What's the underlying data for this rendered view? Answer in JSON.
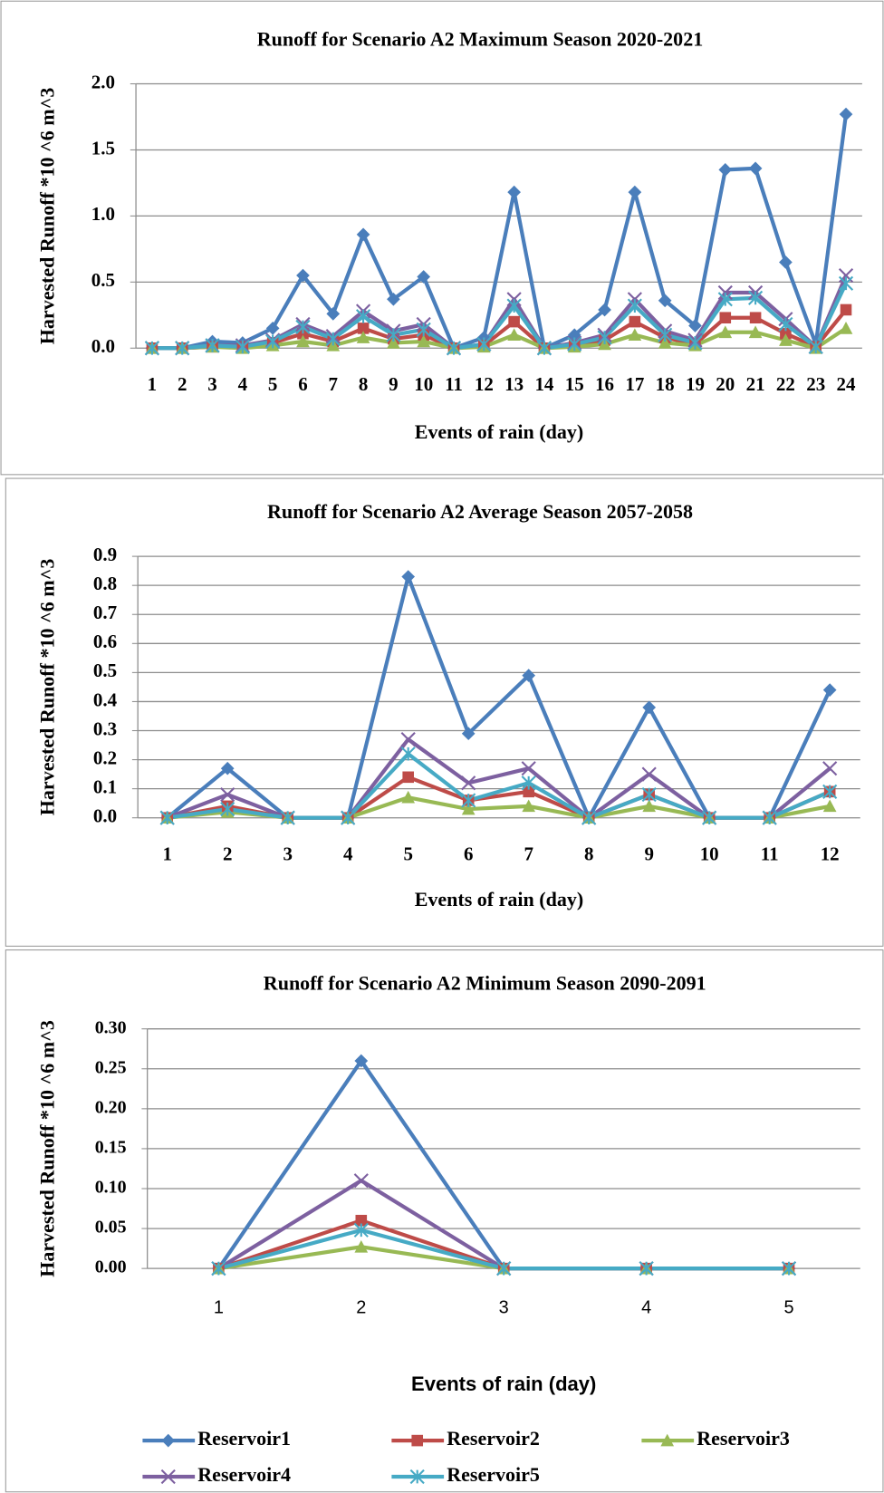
{
  "chart_data": [
    {
      "type": "line",
      "title": "Runoff for Scenario A2 Maximum Season 2020-2021",
      "x_label": "Events of rain (day)",
      "y_label": "Harvested Runoff *10 ^6 m^3",
      "categories": [
        1,
        2,
        3,
        4,
        5,
        6,
        7,
        8,
        9,
        10,
        11,
        12,
        13,
        14,
        15,
        16,
        17,
        18,
        19,
        20,
        21,
        22,
        23,
        24
      ],
      "ylim": [
        0,
        2
      ],
      "yticks": [
        {
          "value": 0,
          "label": "0.0"
        },
        0.5,
        {
          "value": 1,
          "label": "1.0"
        },
        1.5,
        {
          "value": 2,
          "label": "2.0"
        }
      ],
      "grid": true,
      "series": [
        {
          "name": "Reservoir1",
          "color": "#4a7ebb",
          "marker": "diamond",
          "values": [
            0,
            0,
            0.05,
            0.04,
            0.15,
            0.55,
            0.26,
            0.86,
            0.37,
            0.54,
            0,
            0.08,
            1.18,
            0,
            0.1,
            0.29,
            1.18,
            0.36,
            0.17,
            1.35,
            1.36,
            0.65,
            0.03,
            1.77
          ]
        },
        {
          "name": "Reservoir2",
          "color": "#be4b48",
          "marker": "square",
          "values": [
            0,
            0,
            0.01,
            0.01,
            0.04,
            0.11,
            0.05,
            0.15,
            0.07,
            0.1,
            0,
            0.02,
            0.2,
            0,
            0.02,
            0.06,
            0.2,
            0.08,
            0.03,
            0.23,
            0.23,
            0.11,
            0.01,
            0.29
          ]
        },
        {
          "name": "Reservoir3",
          "color": "#98b954",
          "marker": "triangle",
          "values": [
            0,
            0,
            0.01,
            0,
            0.02,
            0.05,
            0.02,
            0.08,
            0.04,
            0.05,
            0,
            0.01,
            0.1,
            0,
            0.01,
            0.03,
            0.1,
            0.04,
            0.02,
            0.12,
            0.12,
            0.06,
            0,
            0.15
          ]
        },
        {
          "name": "Reservoir4",
          "color": "#7d60a0",
          "marker": "x",
          "values": [
            0,
            0,
            0.02,
            0.02,
            0.06,
            0.18,
            0.09,
            0.28,
            0.13,
            0.18,
            0,
            0.03,
            0.37,
            0,
            0.04,
            0.1,
            0.37,
            0.13,
            0.06,
            0.42,
            0.42,
            0.22,
            0.01,
            0.55
          ]
        },
        {
          "name": "Reservoir5",
          "color": "#46aac5",
          "marker": "star",
          "values": [
            0,
            0,
            0.02,
            0.01,
            0.05,
            0.16,
            0.07,
            0.24,
            0.1,
            0.14,
            0,
            0.03,
            0.32,
            0,
            0.03,
            0.08,
            0.32,
            0.1,
            0.04,
            0.37,
            0.38,
            0.18,
            0.01,
            0.49
          ]
        }
      ]
    },
    {
      "type": "line",
      "title": "Runoff for Scenario A2 Average Season 2057-2058",
      "x_label": "Events of rain (day)",
      "y_label": "Harvested Runoff *10 ^6 m^3",
      "categories": [
        1,
        2,
        3,
        4,
        5,
        6,
        7,
        8,
        9,
        10,
        11,
        12
      ],
      "ylim": [
        0,
        0.9
      ],
      "yticks": [
        {
          "value": 0,
          "label": "0.0"
        },
        0.1,
        0.2,
        0.3,
        0.4,
        0.5,
        0.6,
        0.7,
        0.8,
        0.9
      ],
      "grid": true,
      "series": [
        {
          "name": "Reservoir1",
          "color": "#4a7ebb",
          "marker": "diamond",
          "values": [
            0,
            0.17,
            0,
            0,
            0.83,
            0.29,
            0.49,
            0,
            0.38,
            0,
            0,
            0.44
          ]
        },
        {
          "name": "Reservoir2",
          "color": "#be4b48",
          "marker": "square",
          "values": [
            0,
            0.04,
            0,
            0,
            0.14,
            0.06,
            0.09,
            0,
            0.08,
            0,
            0,
            0.09
          ]
        },
        {
          "name": "Reservoir3",
          "color": "#98b954",
          "marker": "triangle",
          "values": [
            0,
            0.02,
            0,
            0,
            0.07,
            0.03,
            0.04,
            0,
            0.04,
            0,
            0,
            0.04
          ]
        },
        {
          "name": "Reservoir4",
          "color": "#7d60a0",
          "marker": "x",
          "values": [
            0,
            0.08,
            0,
            0,
            0.27,
            0.12,
            0.17,
            0,
            0.15,
            0,
            0,
            0.17
          ]
        },
        {
          "name": "Reservoir5",
          "color": "#46aac5",
          "marker": "star",
          "values": [
            0,
            0.03,
            0,
            0,
            0.22,
            0.06,
            0.12,
            0,
            0.08,
            0,
            0,
            0.09
          ]
        }
      ]
    },
    {
      "type": "line",
      "title": "Runoff for Scenario A2 Minimum Season 2090-2091",
      "x_label": "Events of rain (day)",
      "y_label": "Harvested Runoff *10 ^6 m^3",
      "categories": [
        1,
        2,
        3,
        4,
        5
      ],
      "ylim": [
        0,
        0.3
      ],
      "yticks": [
        {
          "value": 0,
          "label": "0.00"
        },
        0.05,
        {
          "value": 0.1,
          "label": "0.10"
        },
        0.15,
        {
          "value": 0.2,
          "label": "0.20"
        },
        0.25,
        {
          "value": 0.3,
          "label": "0.30"
        }
      ],
      "grid": true,
      "legend": "bottom",
      "series": [
        {
          "name": "Reservoir1",
          "color": "#4a7ebb",
          "marker": "diamond",
          "values": [
            0,
            0.26,
            0,
            0,
            0
          ]
        },
        {
          "name": "Reservoir2",
          "color": "#be4b48",
          "marker": "square",
          "values": [
            0,
            0.06,
            0,
            0,
            0
          ]
        },
        {
          "name": "Reservoir3",
          "color": "#98b954",
          "marker": "triangle",
          "values": [
            0,
            0.027,
            0,
            0,
            0
          ]
        },
        {
          "name": "Reservoir4",
          "color": "#7d60a0",
          "marker": "x",
          "values": [
            0,
            0.11,
            0,
            0,
            0
          ]
        },
        {
          "name": "Reservoir5",
          "color": "#46aac5",
          "marker": "star",
          "values": [
            0,
            0.048,
            0,
            0,
            0
          ]
        }
      ]
    }
  ]
}
